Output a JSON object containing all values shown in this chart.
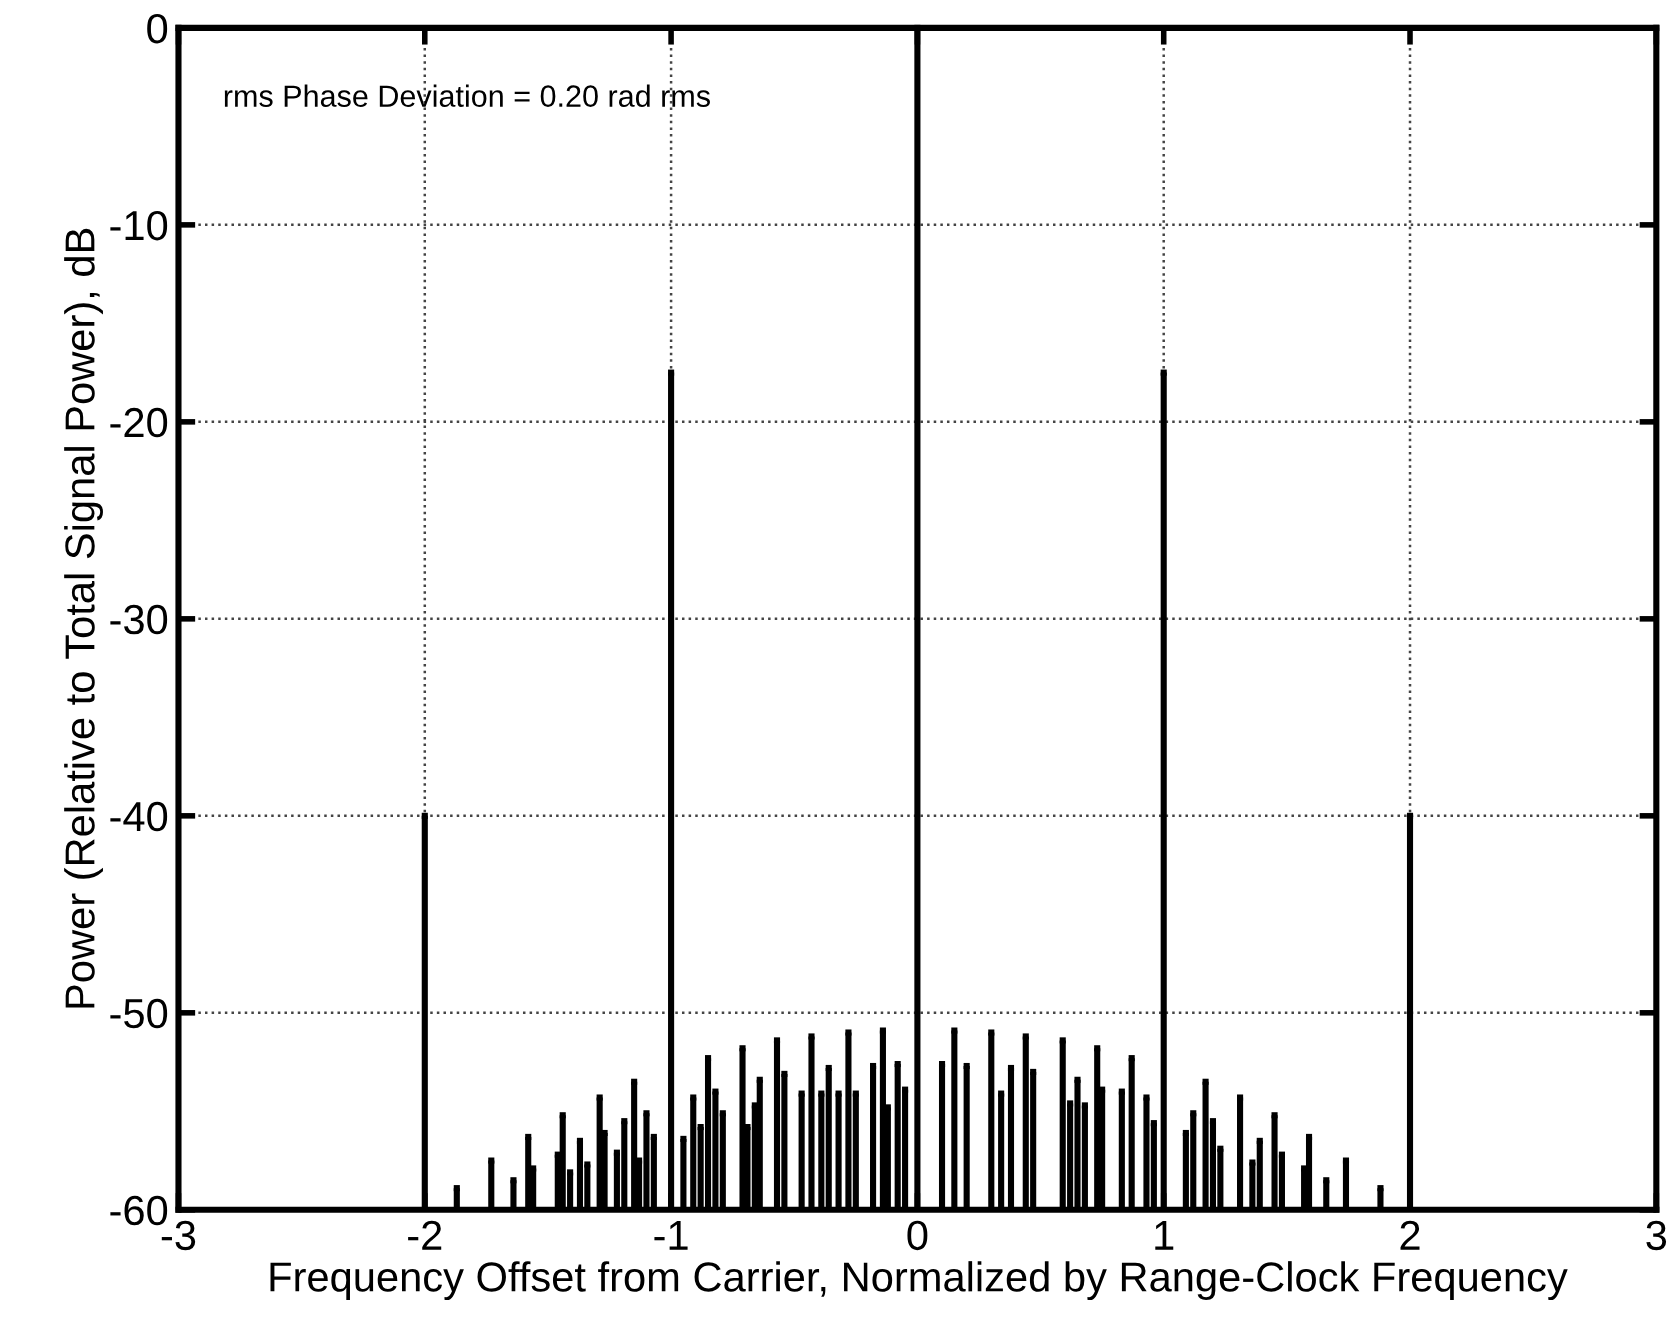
{
  "chart_data": {
    "type": "lollipop",
    "marker": "square",
    "xlabel": "Frequency Offset from Carrier, Normalized by Range-Clock Frequency",
    "ylabel": "Power (Relative to Total Signal Power), dB",
    "annotations": [
      "rms Phase Deviation = 0.20 rad rms"
    ],
    "xlim": [
      -3,
      3
    ],
    "xticks": [
      -3,
      -2,
      -1,
      0,
      1,
      2,
      3
    ],
    "ylim": [
      -60,
      0
    ],
    "yticks": [
      -60,
      -50,
      -40,
      -30,
      -20,
      -10,
      0
    ],
    "grid": true,
    "series": [
      {
        "color": "#000000",
        "x": [
          -2,
          -1.87,
          -1.73,
          -1.64,
          -1.58,
          -1.56,
          -1.46,
          -1.44,
          -1.41,
          -1.37,
          -1.34,
          -1.29,
          -1.27,
          -1.22,
          -1.19,
          -1.15,
          -1.13,
          -1.1,
          -1.07,
          -1,
          -0.95,
          -0.91,
          -0.88,
          -0.85,
          -0.82,
          -0.79,
          -0.71,
          -0.69,
          -0.66,
          -0.64,
          -0.57,
          -0.54,
          -0.47,
          -0.43,
          -0.39,
          -0.36,
          -0.32,
          -0.28,
          -0.25,
          -0.18,
          -0.14,
          -0.12,
          -0.08,
          -0.05,
          0,
          0.1,
          0.15,
          0.2,
          0.3,
          0.34,
          0.38,
          0.44,
          0.47,
          0.59,
          0.62,
          0.65,
          0.68,
          0.73,
          0.75,
          0.83,
          0.87,
          0.93,
          0.96,
          1,
          1.09,
          1.12,
          1.17,
          1.2,
          1.23,
          1.31,
          1.36,
          1.39,
          1.45,
          1.48,
          1.57,
          1.59,
          1.66,
          1.74,
          1.88,
          2
        ],
        "values": [
          -40,
          -58.9,
          -57.5,
          -58.5,
          -56.3,
          -57.9,
          -57.2,
          -55.2,
          -58.1,
          -56.5,
          -57.7,
          -54.3,
          -56.1,
          -57.1,
          -55.5,
          -53.5,
          -57.5,
          -55.1,
          -56.3,
          -17.5,
          -56.4,
          -54.3,
          -55.8,
          -52.3,
          -54,
          -55.1,
          -51.8,
          -55.8,
          -54.7,
          -53.4,
          -51.4,
          -53.1,
          -54.1,
          -51.2,
          -54.1,
          -52.8,
          -54.1,
          -51,
          -54.1,
          -52.7,
          -50.9,
          -54.8,
          -52.6,
          -53.9,
          0,
          -52.6,
          -50.9,
          -52.7,
          -51,
          -54.1,
          -52.8,
          -51.2,
          -53,
          -51.4,
          -54.6,
          -53.4,
          -54.7,
          -51.8,
          -53.9,
          -54,
          -52.3,
          -54.3,
          -55.6,
          -17.5,
          -56.1,
          -55.1,
          -53.5,
          -55.5,
          -56.9,
          -54.3,
          -57.6,
          -56.5,
          -55.2,
          -57.2,
          -57.9,
          -56.3,
          -58.5,
          -57.5,
          -58.9,
          -40
        ]
      }
    ]
  }
}
